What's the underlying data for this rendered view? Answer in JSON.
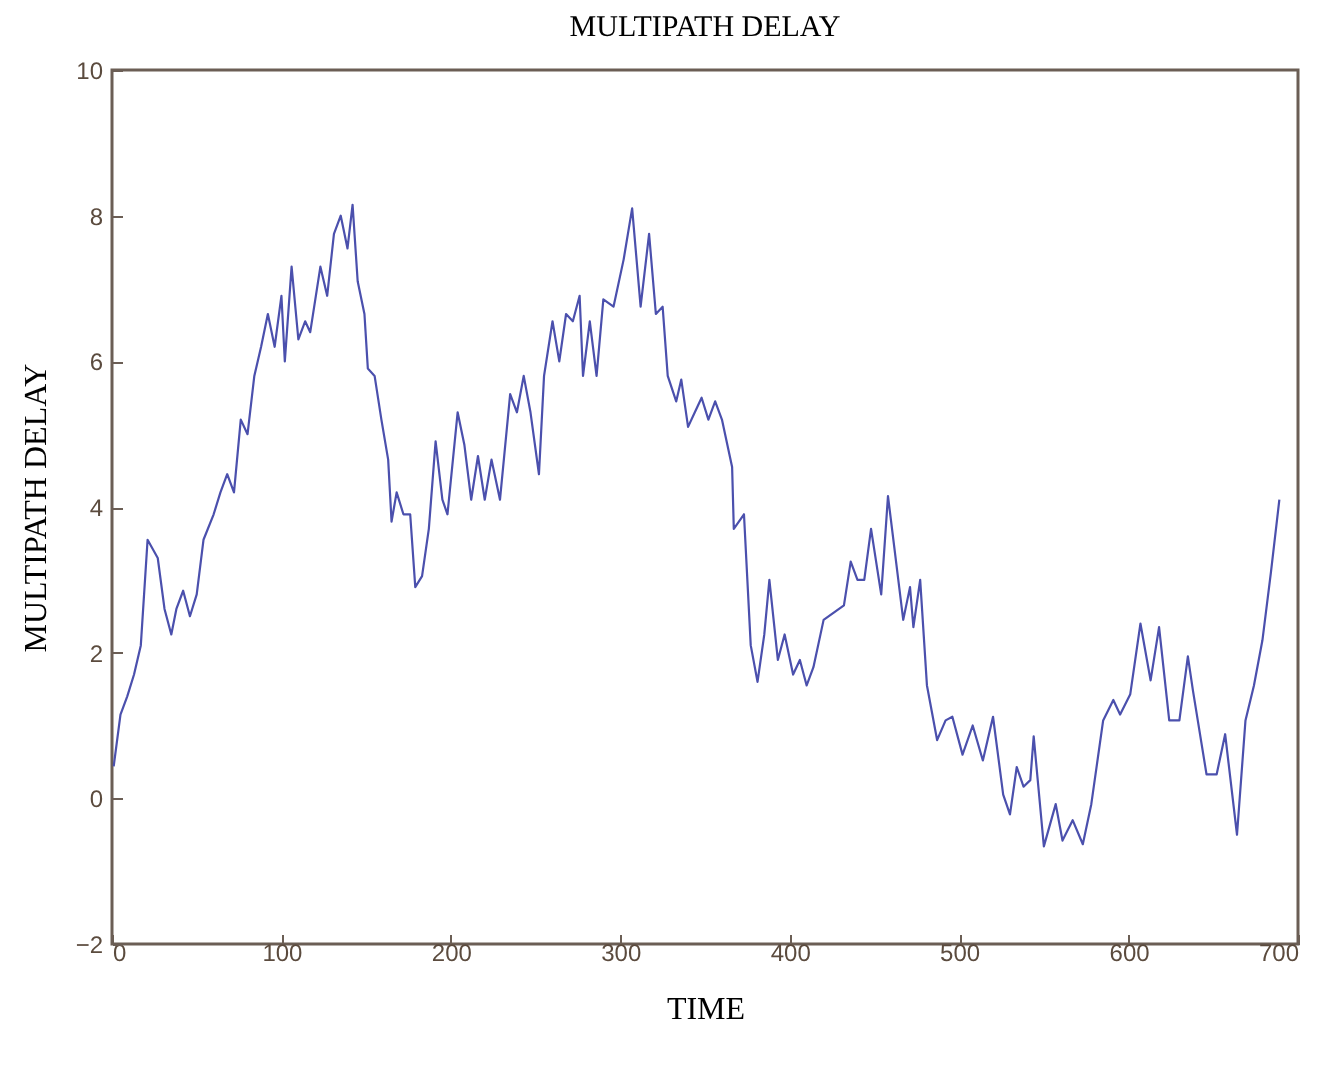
{
  "chart_data": {
    "type": "line",
    "title": "MULTIPATH DELAY",
    "xlabel": "TIME",
    "ylabel": "MULTIPATH DELAY",
    "xlim": [
      0,
      700
    ],
    "ylim": [
      -2,
      10
    ],
    "xticks": [
      0,
      100,
      200,
      300,
      400,
      500,
      600,
      700
    ],
    "yticks": [
      -2,
      0,
      2,
      4,
      6,
      8,
      10
    ],
    "grid": false,
    "marker": "none",
    "line_style": "solid",
    "x": [
      1,
      5,
      9,
      13,
      17,
      21,
      27,
      31,
      35,
      38,
      42,
      46,
      50,
      54,
      60,
      64,
      68,
      72,
      76,
      80,
      84,
      88,
      92,
      96,
      100,
      102,
      106,
      110,
      114,
      117,
      123,
      127,
      131,
      135,
      139,
      142,
      145,
      149,
      151,
      155,
      159,
      163,
      165,
      168,
      172,
      176,
      179,
      183,
      187,
      191,
      195,
      198,
      204,
      208,
      212,
      216,
      220,
      224,
      229,
      235,
      239,
      243,
      247,
      252,
      255,
      260,
      264,
      268,
      272,
      276,
      278,
      282,
      286,
      290,
      296,
      302,
      307,
      312,
      317,
      321,
      325,
      328,
      333,
      336,
      340,
      344,
      348,
      352,
      356,
      360,
      366,
      367,
      373,
      377,
      381,
      385,
      388,
      393,
      397,
      402,
      406,
      410,
      414,
      420,
      426,
      432,
      436,
      440,
      444,
      448,
      454,
      458,
      467,
      471,
      473,
      477,
      481,
      487,
      492,
      496,
      502,
      508,
      514,
      520,
      526,
      530,
      534,
      538,
      542,
      544,
      550,
      557,
      561,
      567,
      573,
      578,
      585,
      591,
      595,
      601,
      607,
      613,
      618,
      624,
      630,
      635,
      638,
      646,
      652,
      657,
      664,
      669,
      674,
      679,
      684,
      689
    ],
    "series": [
      {
        "color": "#4b50ad",
        "values": [
          0.44,
          1.15,
          1.4,
          1.7,
          2.1,
          3.55,
          3.3,
          2.6,
          2.25,
          2.6,
          2.85,
          2.5,
          2.8,
          3.55,
          3.9,
          4.2,
          4.45,
          4.2,
          5.2,
          5.0,
          5.8,
          6.2,
          6.65,
          6.2,
          6.9,
          6.0,
          7.3,
          6.3,
          6.55,
          6.4,
          7.3,
          6.9,
          7.75,
          8.0,
          7.55,
          8.15,
          7.1,
          6.65,
          5.9,
          5.8,
          5.2,
          4.65,
          3.8,
          4.2,
          3.9,
          3.9,
          2.9,
          3.05,
          3.7,
          4.9,
          4.1,
          3.9,
          5.3,
          4.85,
          4.1,
          4.7,
          4.1,
          4.65,
          4.1,
          5.55,
          5.3,
          5.8,
          5.3,
          4.45,
          5.8,
          6.55,
          6.0,
          6.65,
          6.55,
          6.9,
          5.8,
          6.55,
          5.8,
          6.85,
          6.75,
          7.4,
          8.1,
          6.75,
          7.75,
          6.65,
          6.75,
          5.8,
          5.45,
          5.75,
          5.1,
          5.3,
          5.5,
          5.2,
          5.45,
          5.2,
          4.55,
          3.7,
          3.9,
          2.1,
          1.6,
          2.25,
          3.0,
          1.9,
          2.25,
          1.7,
          1.9,
          1.55,
          1.8,
          2.45,
          2.55,
          2.65,
          3.25,
          3.0,
          3.0,
          3.7,
          2.8,
          4.15,
          2.45,
          2.9,
          2.35,
          3.0,
          1.55,
          0.8,
          1.07,
          1.12,
          0.6,
          1.0,
          0.52,
          1.12,
          0.05,
          -0.22,
          0.43,
          0.16,
          0.25,
          0.85,
          -0.66,
          -0.08,
          -0.58,
          -0.3,
          -0.63,
          -0.08,
          1.07,
          1.35,
          1.15,
          1.43,
          2.4,
          1.62,
          2.35,
          1.07,
          1.07,
          1.95,
          1.48,
          0.33,
          0.33,
          0.88,
          -0.5,
          1.07,
          1.55,
          2.17,
          3.1,
          4.1
        ]
      }
    ]
  }
}
